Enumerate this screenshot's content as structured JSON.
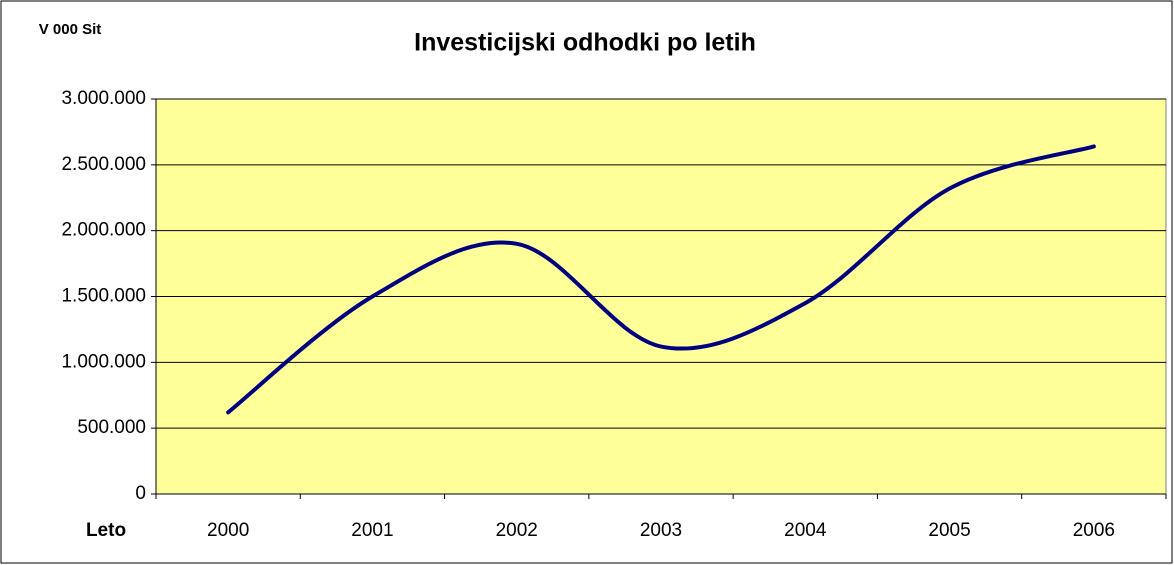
{
  "chart_data": {
    "type": "line",
    "title": "Investicijski odhodki po letih",
    "y_label": "V 000 Sit",
    "x_label": "Leto",
    "categories": [
      "2000",
      "2001",
      "2002",
      "2003",
      "2004",
      "2005",
      "2006"
    ],
    "series": [
      {
        "name": "Investicijski odhodki",
        "color": "#000080",
        "values": [
          620000,
          1500000,
          1900000,
          1120000,
          1450000,
          2320000,
          2640000
        ]
      }
    ],
    "ylim": [
      0,
      3000000
    ],
    "yticks": [
      0,
      {
        "value": 500000,
        "label": "500.000"
      },
      {
        "value": 1000000,
        "label": "1.000.000"
      },
      {
        "value": 1500000,
        "label": "1.500.000"
      },
      {
        "value": 2000000,
        "label": "2.000.000"
      },
      {
        "value": 2500000,
        "label": "2.500.000"
      },
      {
        "value": 3000000,
        "label": "3.000.000"
      }
    ],
    "grid": true,
    "smooth": true,
    "plot_background": "#ffff99"
  }
}
